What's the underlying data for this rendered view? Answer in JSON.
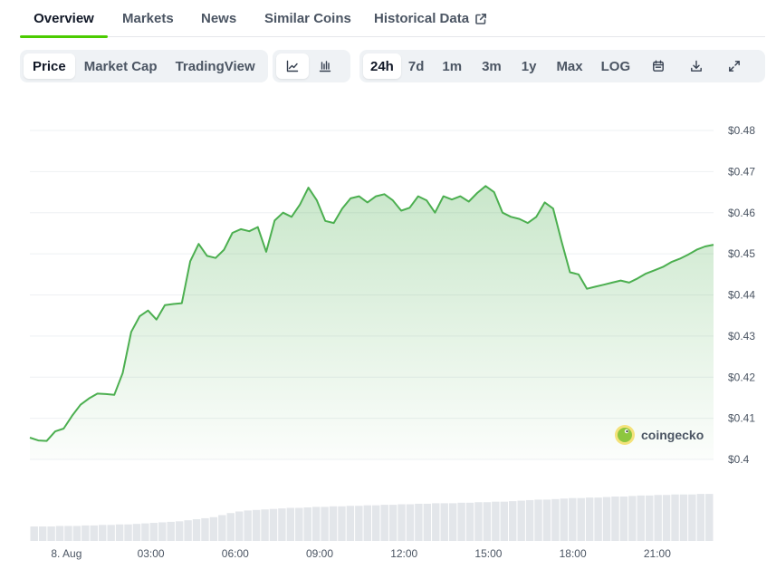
{
  "tabs": [
    {
      "label": "Overview"
    },
    {
      "label": "Markets"
    },
    {
      "label": "News"
    },
    {
      "label": "Similar Coins"
    },
    {
      "label": "Historical Data"
    }
  ],
  "toolbar": {
    "chart_modes": [
      "Price",
      "Market Cap",
      "TradingView"
    ],
    "chart_styles": [
      "line-chart-icon",
      "candlestick-icon"
    ],
    "ranges": [
      "24h",
      "7d",
      "1m",
      "3m",
      "1y",
      "Max",
      "LOG"
    ],
    "actions": [
      "calendar-icon",
      "download-icon",
      "fullscreen-icon"
    ],
    "active_mode": "Price",
    "active_range": "24h"
  },
  "watermark": "coingecko",
  "colors": {
    "accent": "#4bcc00",
    "line": "#4caf50"
  },
  "chart_data": {
    "type": "area",
    "title": "",
    "xlabel": "",
    "ylabel": "",
    "ylim": [
      0.4,
      0.48
    ],
    "yticks": [
      "$0.48",
      "$0.47",
      "$0.46",
      "$0.45",
      "$0.44",
      "$0.43",
      "$0.42",
      "$0.41",
      "$0.4"
    ],
    "ytick_values": [
      0.48,
      0.47,
      0.46,
      0.45,
      0.44,
      0.43,
      0.42,
      0.41,
      0.4
    ],
    "xlim": [
      -1.3,
      23.0
    ],
    "xticks": [
      "8. Aug",
      "03:00",
      "06:00",
      "09:00",
      "12:00",
      "15:00",
      "18:00",
      "21:00"
    ],
    "xtick_hours": [
      0,
      3,
      6,
      9,
      12,
      15,
      18,
      21
    ],
    "grid": true,
    "series": [
      {
        "hours": [
          -1.3,
          -1.0,
          -0.7,
          -0.4,
          -0.1,
          0.2,
          0.5,
          0.8,
          1.1,
          1.4,
          1.7,
          2.0,
          2.3,
          2.6,
          2.9,
          3.2,
          3.5,
          3.8,
          4.1,
          4.4,
          4.7,
          5.0,
          5.3,
          5.6,
          5.9,
          6.2,
          6.5,
          6.8,
          7.1,
          7.4,
          7.7,
          8.0,
          8.3,
          8.6,
          8.9,
          9.2,
          9.5,
          9.8,
          10.1,
          10.4,
          10.7,
          11.0,
          11.3,
          11.6,
          11.9,
          12.2,
          12.5,
          12.8,
          13.1,
          13.4,
          13.7,
          14.0,
          14.3,
          14.6,
          14.9,
          15.2,
          15.5,
          15.8,
          16.1,
          16.4,
          16.7,
          17.0,
          17.3,
          17.6,
          17.9,
          18.2,
          18.5,
          18.8,
          19.1,
          19.4,
          19.7,
          20.0,
          20.3,
          20.6,
          20.9,
          21.2,
          21.5,
          21.8,
          22.1,
          22.4,
          22.7,
          23.0
        ],
        "values": [
          0.4053,
          0.4046,
          0.4045,
          0.4068,
          0.4075,
          0.4106,
          0.4133,
          0.4148,
          0.416,
          0.4159,
          0.4157,
          0.421,
          0.431,
          0.4348,
          0.4362,
          0.434,
          0.4375,
          0.4378,
          0.438,
          0.4482,
          0.4524,
          0.4495,
          0.449,
          0.451,
          0.4551,
          0.456,
          0.4555,
          0.4565,
          0.4505,
          0.4581,
          0.46,
          0.459,
          0.462,
          0.4661,
          0.463,
          0.458,
          0.4575,
          0.461,
          0.4635,
          0.464,
          0.4625,
          0.464,
          0.4645,
          0.463,
          0.4605,
          0.4612,
          0.464,
          0.463,
          0.46,
          0.464,
          0.4632,
          0.464,
          0.4627,
          0.4648,
          0.4665,
          0.465,
          0.46,
          0.459,
          0.4585,
          0.4575,
          0.459,
          0.4625,
          0.461,
          0.453,
          0.4455,
          0.445,
          0.4415,
          0.442,
          0.4425,
          0.443,
          0.4435,
          0.443,
          0.444,
          0.4452,
          0.446,
          0.4468,
          0.448,
          0.4488,
          0.4498,
          0.451,
          0.4518,
          0.4522
        ]
      }
    ],
    "volume": {
      "hours_start": -1.3,
      "hours_end": 23.0,
      "relative": [
        0.28,
        0.28,
        0.28,
        0.29,
        0.29,
        0.29,
        0.3,
        0.3,
        0.31,
        0.31,
        0.32,
        0.32,
        0.33,
        0.34,
        0.35,
        0.36,
        0.37,
        0.38,
        0.4,
        0.42,
        0.44,
        0.46,
        0.5,
        0.54,
        0.57,
        0.59,
        0.6,
        0.61,
        0.62,
        0.63,
        0.64,
        0.64,
        0.65,
        0.66,
        0.66,
        0.67,
        0.67,
        0.68,
        0.68,
        0.69,
        0.69,
        0.7,
        0.7,
        0.71,
        0.71,
        0.72,
        0.72,
        0.73,
        0.73,
        0.73,
        0.74,
        0.74,
        0.75,
        0.75,
        0.76,
        0.76,
        0.77,
        0.78,
        0.79,
        0.8,
        0.8,
        0.81,
        0.82,
        0.83,
        0.83,
        0.84,
        0.84,
        0.85,
        0.86,
        0.86,
        0.87,
        0.88,
        0.88,
        0.89,
        0.89,
        0.9,
        0.9,
        0.9,
        0.91,
        0.91
      ]
    }
  }
}
